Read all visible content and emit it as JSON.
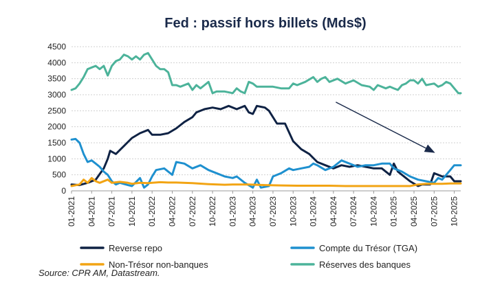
{
  "chart_data": {
    "type": "line",
    "title": "Fed : passif hors billets (Mds$)",
    "xlabel": "",
    "ylabel": "",
    "ylim": [
      0,
      4500
    ],
    "yticks": [
      0,
      500,
      1000,
      1500,
      2000,
      2500,
      3000,
      3500,
      4000,
      4500
    ],
    "x_range": [
      2021.0,
      2025.83
    ],
    "xticks": [
      {
        "label": "01-2021",
        "t": 2021.0
      },
      {
        "label": "04-2021",
        "t": 2021.25
      },
      {
        "label": "07-2021",
        "t": 2021.5
      },
      {
        "label": "10-2021",
        "t": 2021.75
      },
      {
        "label": "01-2022",
        "t": 2022.0
      },
      {
        "label": "04-2022",
        "t": 2022.25
      },
      {
        "label": "07-2022",
        "t": 2022.5
      },
      {
        "label": "10-2022",
        "t": 2022.75
      },
      {
        "label": "01-2023",
        "t": 2023.0
      },
      {
        "label": "04-2023",
        "t": 2023.25
      },
      {
        "label": "07-2023",
        "t": 2023.5
      },
      {
        "label": "10-2023",
        "t": 2023.75
      },
      {
        "label": "01-2024",
        "t": 2024.0
      },
      {
        "label": "04-2024",
        "t": 2024.25
      },
      {
        "label": "07-2024",
        "t": 2024.5
      },
      {
        "label": "10-2024",
        "t": 2024.75
      },
      {
        "label": "01-2025",
        "t": 2025.0
      },
      {
        "label": "04-2025",
        "t": 2025.25
      },
      {
        "label": "07-2025",
        "t": 2025.5
      },
      {
        "label": "10-2025",
        "t": 2025.75
      }
    ],
    "series": [
      {
        "name": "Reverse repo",
        "color": "#0f2244",
        "points": [
          [
            2021.0,
            200
          ],
          [
            2021.1,
            180
          ],
          [
            2021.2,
            250
          ],
          [
            2021.3,
            350
          ],
          [
            2021.4,
            700
          ],
          [
            2021.45,
            1000
          ],
          [
            2021.48,
            1250
          ],
          [
            2021.55,
            1150
          ],
          [
            2021.65,
            1400
          ],
          [
            2021.75,
            1650
          ],
          [
            2021.85,
            1800
          ],
          [
            2021.95,
            1900
          ],
          [
            2022.0,
            1750
          ],
          [
            2022.1,
            1750
          ],
          [
            2022.2,
            1800
          ],
          [
            2022.3,
            1950
          ],
          [
            2022.4,
            2150
          ],
          [
            2022.5,
            2300
          ],
          [
            2022.55,
            2450
          ],
          [
            2022.65,
            2550
          ],
          [
            2022.75,
            2600
          ],
          [
            2022.85,
            2550
          ],
          [
            2022.95,
            2650
          ],
          [
            2023.05,
            2550
          ],
          [
            2023.15,
            2650
          ],
          [
            2023.2,
            2450
          ],
          [
            2023.25,
            2400
          ],
          [
            2023.3,
            2650
          ],
          [
            2023.4,
            2600
          ],
          [
            2023.45,
            2500
          ],
          [
            2023.55,
            2100
          ],
          [
            2023.65,
            2100
          ],
          [
            2023.75,
            1550
          ],
          [
            2023.85,
            1300
          ],
          [
            2023.95,
            1150
          ],
          [
            2024.05,
            900
          ],
          [
            2024.15,
            800
          ],
          [
            2024.25,
            700
          ],
          [
            2024.35,
            800
          ],
          [
            2024.45,
            750
          ],
          [
            2024.55,
            800
          ],
          [
            2024.65,
            750
          ],
          [
            2024.75,
            700
          ],
          [
            2024.85,
            700
          ],
          [
            2024.95,
            500
          ],
          [
            2025.0,
            850
          ],
          [
            2025.05,
            600
          ],
          [
            2025.15,
            400
          ],
          [
            2025.2,
            300
          ],
          [
            2025.3,
            150
          ],
          [
            2025.35,
            200
          ],
          [
            2025.45,
            200
          ],
          [
            2025.5,
            550
          ],
          [
            2025.6,
            450
          ],
          [
            2025.7,
            450
          ],
          [
            2025.75,
            300
          ],
          [
            2025.83,
            300
          ]
        ]
      },
      {
        "name": "Compte du Trésor (TGA)",
        "color": "#1e90cf",
        "points": [
          [
            2021.0,
            1600
          ],
          [
            2021.05,
            1620
          ],
          [
            2021.1,
            1500
          ],
          [
            2021.15,
            1150
          ],
          [
            2021.2,
            900
          ],
          [
            2021.25,
            950
          ],
          [
            2021.3,
            850
          ],
          [
            2021.35,
            750
          ],
          [
            2021.4,
            600
          ],
          [
            2021.45,
            500
          ],
          [
            2021.5,
            300
          ],
          [
            2021.55,
            200
          ],
          [
            2021.6,
            250
          ],
          [
            2021.7,
            180
          ],
          [
            2021.75,
            150
          ],
          [
            2021.85,
            400
          ],
          [
            2021.9,
            100
          ],
          [
            2021.95,
            200
          ],
          [
            2022.0,
            450
          ],
          [
            2022.05,
            650
          ],
          [
            2022.15,
            700
          ],
          [
            2022.25,
            500
          ],
          [
            2022.3,
            900
          ],
          [
            2022.4,
            850
          ],
          [
            2022.5,
            700
          ],
          [
            2022.6,
            800
          ],
          [
            2022.7,
            650
          ],
          [
            2022.8,
            550
          ],
          [
            2022.9,
            450
          ],
          [
            2023.0,
            400
          ],
          [
            2023.05,
            450
          ],
          [
            2023.15,
            250
          ],
          [
            2023.25,
            100
          ],
          [
            2023.3,
            350
          ],
          [
            2023.35,
            100
          ],
          [
            2023.45,
            150
          ],
          [
            2023.5,
            450
          ],
          [
            2023.6,
            550
          ],
          [
            2023.7,
            700
          ],
          [
            2023.75,
            650
          ],
          [
            2023.85,
            700
          ],
          [
            2023.95,
            750
          ],
          [
            2024.0,
            850
          ],
          [
            2024.05,
            800
          ],
          [
            2024.15,
            650
          ],
          [
            2024.25,
            750
          ],
          [
            2024.35,
            950
          ],
          [
            2024.45,
            850
          ],
          [
            2024.55,
            750
          ],
          [
            2024.65,
            800
          ],
          [
            2024.75,
            800
          ],
          [
            2024.85,
            850
          ],
          [
            2024.95,
            850
          ],
          [
            2025.0,
            700
          ],
          [
            2025.1,
            600
          ],
          [
            2025.2,
            450
          ],
          [
            2025.3,
            350
          ],
          [
            2025.4,
            300
          ],
          [
            2025.5,
            250
          ],
          [
            2025.55,
            400
          ],
          [
            2025.6,
            350
          ],
          [
            2025.65,
            500
          ],
          [
            2025.7,
            650
          ],
          [
            2025.75,
            800
          ],
          [
            2025.83,
            800
          ]
        ]
      },
      {
        "name": "Non-Trésor non-banques",
        "color": "#f2a413",
        "points": [
          [
            2021.0,
            150
          ],
          [
            2021.1,
            200
          ],
          [
            2021.15,
            350
          ],
          [
            2021.2,
            250
          ],
          [
            2021.25,
            400
          ],
          [
            2021.3,
            300
          ],
          [
            2021.35,
            250
          ],
          [
            2021.45,
            350
          ],
          [
            2021.5,
            250
          ],
          [
            2021.6,
            280
          ],
          [
            2021.7,
            250
          ],
          [
            2021.75,
            220
          ],
          [
            2021.85,
            250
          ],
          [
            2021.95,
            240
          ],
          [
            2022.0,
            250
          ],
          [
            2022.1,
            270
          ],
          [
            2022.2,
            260
          ],
          [
            2022.3,
            260
          ],
          [
            2022.5,
            240
          ],
          [
            2022.7,
            210
          ],
          [
            2022.9,
            190
          ],
          [
            2023.0,
            200
          ],
          [
            2023.2,
            200
          ],
          [
            2023.4,
            180
          ],
          [
            2023.6,
            170
          ],
          [
            2023.8,
            160
          ],
          [
            2024.0,
            160
          ],
          [
            2024.2,
            160
          ],
          [
            2024.4,
            150
          ],
          [
            2024.6,
            150
          ],
          [
            2024.8,
            150
          ],
          [
            2025.0,
            150
          ],
          [
            2025.2,
            150
          ],
          [
            2025.3,
            200
          ],
          [
            2025.4,
            220
          ],
          [
            2025.5,
            220
          ],
          [
            2025.6,
            220
          ],
          [
            2025.7,
            230
          ],
          [
            2025.83,
            230
          ]
        ]
      },
      {
        "name": "Réserves des banques",
        "color": "#4cb39a",
        "points": [
          [
            2021.0,
            3150
          ],
          [
            2021.05,
            3200
          ],
          [
            2021.1,
            3350
          ],
          [
            2021.15,
            3550
          ],
          [
            2021.2,
            3800
          ],
          [
            2021.25,
            3850
          ],
          [
            2021.3,
            3900
          ],
          [
            2021.35,
            3800
          ],
          [
            2021.4,
            3900
          ],
          [
            2021.45,
            3600
          ],
          [
            2021.5,
            3900
          ],
          [
            2021.55,
            4050
          ],
          [
            2021.6,
            4100
          ],
          [
            2021.65,
            4250
          ],
          [
            2021.7,
            4200
          ],
          [
            2021.75,
            4100
          ],
          [
            2021.8,
            4200
          ],
          [
            2021.85,
            4100
          ],
          [
            2021.9,
            4250
          ],
          [
            2021.95,
            4300
          ],
          [
            2022.0,
            4100
          ],
          [
            2022.05,
            3900
          ],
          [
            2022.1,
            3800
          ],
          [
            2022.15,
            3800
          ],
          [
            2022.2,
            3700
          ],
          [
            2022.25,
            3300
          ],
          [
            2022.3,
            3300
          ],
          [
            2022.35,
            3250
          ],
          [
            2022.45,
            3350
          ],
          [
            2022.5,
            3150
          ],
          [
            2022.55,
            3300
          ],
          [
            2022.6,
            3200
          ],
          [
            2022.65,
            3300
          ],
          [
            2022.7,
            3400
          ],
          [
            2022.75,
            3050
          ],
          [
            2022.8,
            3100
          ],
          [
            2022.9,
            3100
          ],
          [
            2023.0,
            3050
          ],
          [
            2023.05,
            3200
          ],
          [
            2023.1,
            3100
          ],
          [
            2023.15,
            3050
          ],
          [
            2023.2,
            3400
          ],
          [
            2023.25,
            3350
          ],
          [
            2023.3,
            3250
          ],
          [
            2023.4,
            3250
          ],
          [
            2023.5,
            3250
          ],
          [
            2023.6,
            3200
          ],
          [
            2023.7,
            3200
          ],
          [
            2023.75,
            3350
          ],
          [
            2023.8,
            3300
          ],
          [
            2023.9,
            3400
          ],
          [
            2024.0,
            3550
          ],
          [
            2024.05,
            3400
          ],
          [
            2024.1,
            3500
          ],
          [
            2024.15,
            3550
          ],
          [
            2024.2,
            3400
          ],
          [
            2024.3,
            3500
          ],
          [
            2024.4,
            3350
          ],
          [
            2024.5,
            3450
          ],
          [
            2024.6,
            3300
          ],
          [
            2024.7,
            3250
          ],
          [
            2024.75,
            3150
          ],
          [
            2024.8,
            3300
          ],
          [
            2024.9,
            3200
          ],
          [
            2024.95,
            3250
          ],
          [
            2025.0,
            3200
          ],
          [
            2025.05,
            3150
          ],
          [
            2025.1,
            3300
          ],
          [
            2025.15,
            3350
          ],
          [
            2025.2,
            3450
          ],
          [
            2025.25,
            3450
          ],
          [
            2025.3,
            3350
          ],
          [
            2025.35,
            3500
          ],
          [
            2025.4,
            3300
          ],
          [
            2025.5,
            3350
          ],
          [
            2025.55,
            3250
          ],
          [
            2025.6,
            3300
          ],
          [
            2025.65,
            3400
          ],
          [
            2025.7,
            3350
          ],
          [
            2025.75,
            3200
          ],
          [
            2025.8,
            3050
          ],
          [
            2025.83,
            3050
          ]
        ]
      }
    ],
    "annotations": [
      {
        "type": "arrow",
        "from": [
          2024.28,
          2770
        ],
        "to": [
          2025.5,
          1200
        ],
        "color": "#1a2a4a"
      }
    ],
    "legend": [
      {
        "label": "Reverse repo",
        "color": "#0f2244"
      },
      {
        "label": "Compte du Trésor (TGA)",
        "color": "#1e90cf"
      },
      {
        "label": "Non-Trésor non-banques",
        "color": "#f2a413"
      },
      {
        "label": "Réserves des banques",
        "color": "#4cb39a"
      }
    ],
    "legend_position": "bottom",
    "source": "Source: CPR AM, Datastream."
  }
}
